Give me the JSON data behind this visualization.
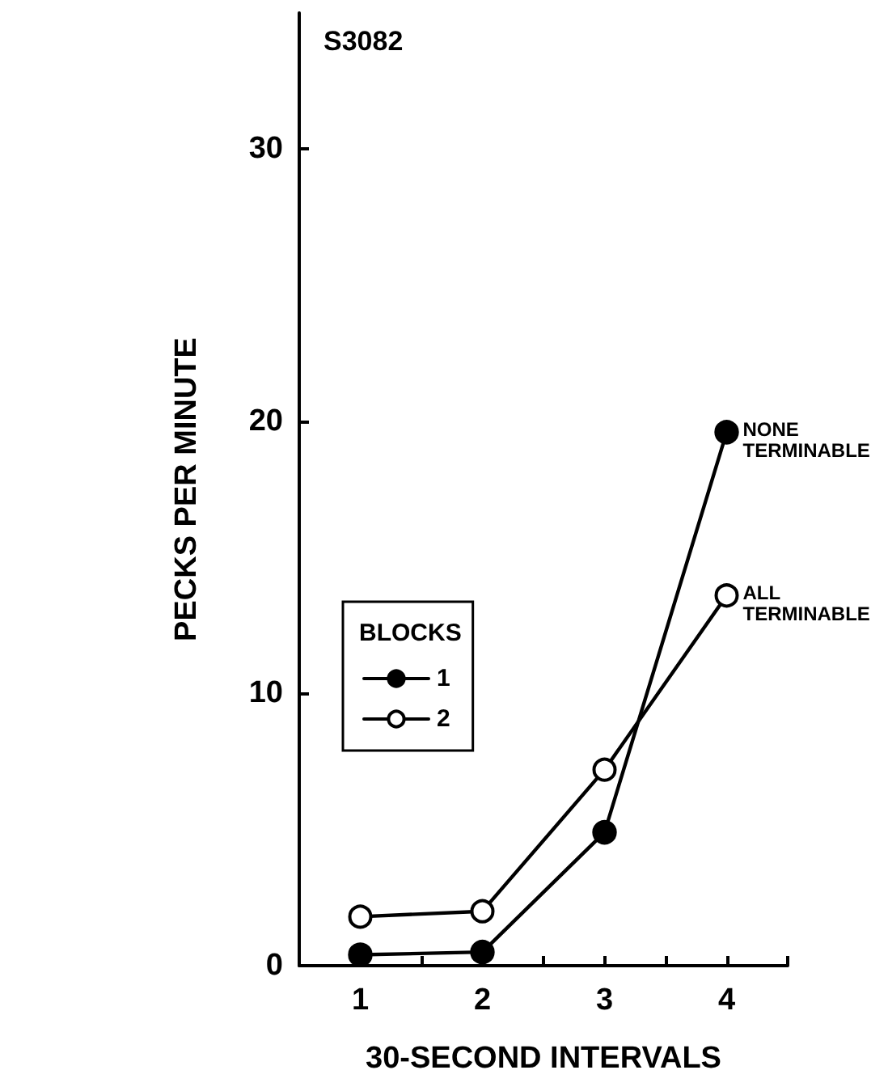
{
  "chart_data": {
    "type": "line",
    "title": "S3082",
    "xlabel": "30-SECOND INTERVALS",
    "ylabel": "PECKS PER MINUTE",
    "legend_title": "BLOCKS",
    "x": [
      1,
      2,
      3,
      4
    ],
    "series": [
      {
        "name": "1",
        "color": "#000000",
        "values": [
          0.4,
          0.5,
          4.9,
          19.6
        ]
      },
      {
        "name": "2",
        "color": "#000000",
        "values": [
          1.8,
          2.0,
          7.2,
          13.6
        ]
      }
    ],
    "xlim": [
      0.5,
      4.5
    ],
    "xticks": [
      {
        "value": 0.5,
        "label": null
      },
      1,
      {
        "value": 1.5,
        "label": null
      },
      2,
      {
        "value": 2.5,
        "label": null
      },
      3,
      {
        "value": 3.5,
        "label": null
      },
      4,
      {
        "value": 4.5,
        "label": null
      }
    ],
    "ylim": [
      0,
      35
    ],
    "yticks": [
      0,
      10,
      20,
      30
    ],
    "annotations": [
      {
        "text": "NONE\nTERMINABLE",
        "x": 4,
        "y": 19.6
      },
      {
        "text": "ALL\nTERMINABLE",
        "x": 4,
        "y": 13.6
      }
    ],
    "grid": false,
    "legend": "left",
    "marker": "circle",
    "line_style": "solid"
  }
}
